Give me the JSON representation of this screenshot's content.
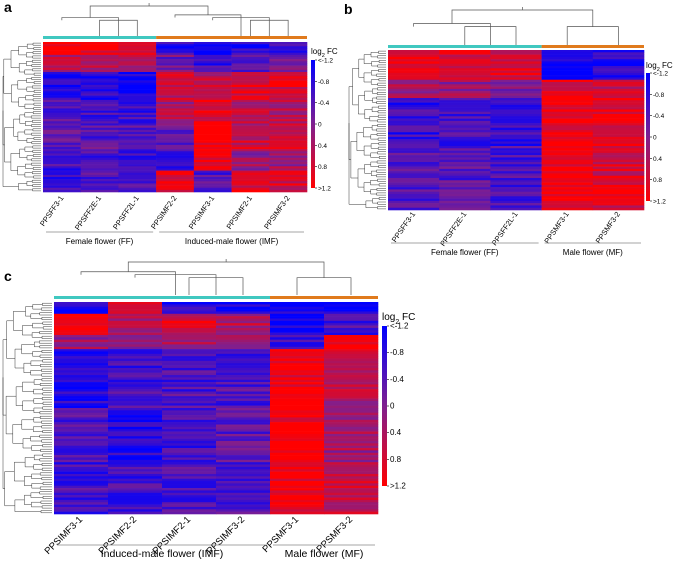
{
  "chart_data": [
    {
      "panel": "a",
      "type": "heatmap",
      "columns": [
        "PPSFF3-1",
        "PPSFF2E-1",
        "PPSFF2L-1",
        "PPSIMF2-2",
        "PPSIMF3-1",
        "PPSIMF2-1",
        "PPSIMF3-2"
      ],
      "groups": [
        {
          "label": "Female flower (FF)",
          "columns": [
            "PPSFF3-1",
            "PPSFF2E-1",
            "PPSFF2L-1"
          ],
          "color": "#40c8c0"
        },
        {
          "label": "Induced-male flower (IMF)",
          "columns": [
            "PPSIMF2-2",
            "PPSIMF3-1",
            "PPSIMF2-1",
            "PPSIMF3-2"
          ],
          "color": "#e07a1c"
        }
      ],
      "legend": {
        "title": "log",
        "title_sub": "2",
        "title_suffix": " FC",
        "ticks": [
          "<-1.2",
          "-0.8",
          "-0.4",
          "0",
          "0.4",
          "0.8",
          ">1.2"
        ],
        "range": [
          -1.2,
          1.2
        ]
      },
      "column_patterns": [
        [
          [
            0.09,
            1.1
          ],
          [
            0.2,
            0.5
          ],
          [
            0.38,
            -0.9
          ],
          [
            0.55,
            -0.5
          ],
          [
            0.72,
            -0.3
          ],
          [
            1.0,
            -0.6
          ]
        ],
        [
          [
            0.09,
            1.1
          ],
          [
            0.2,
            0.4
          ],
          [
            0.38,
            -0.9
          ],
          [
            0.55,
            -0.6
          ],
          [
            0.72,
            -0.4
          ],
          [
            1.0,
            -0.5
          ]
        ],
        [
          [
            0.09,
            1.0
          ],
          [
            0.2,
            0.3
          ],
          [
            0.38,
            -1.0
          ],
          [
            0.55,
            -0.7
          ],
          [
            0.72,
            -0.5
          ],
          [
            1.0,
            -0.6
          ]
        ],
        [
          [
            0.09,
            -0.8
          ],
          [
            0.2,
            -0.2
          ],
          [
            0.38,
            0.6
          ],
          [
            0.55,
            0.4
          ],
          [
            0.72,
            -0.4
          ],
          [
            0.85,
            -0.6
          ],
          [
            1.0,
            1.0
          ]
        ],
        [
          [
            0.09,
            -1.1
          ],
          [
            0.2,
            -0.7
          ],
          [
            0.38,
            0.5
          ],
          [
            0.55,
            1.0
          ],
          [
            0.72,
            1.1
          ],
          [
            0.85,
            1.1
          ],
          [
            1.0,
            -0.5
          ]
        ],
        [
          [
            0.09,
            -0.8
          ],
          [
            0.2,
            -0.3
          ],
          [
            0.38,
            0.9
          ],
          [
            0.55,
            0.6
          ],
          [
            0.72,
            0.7
          ],
          [
            0.85,
            0.2
          ],
          [
            1.0,
            0.9
          ]
        ],
        [
          [
            0.09,
            -0.7
          ],
          [
            0.2,
            -0.2
          ],
          [
            0.38,
            0.8
          ],
          [
            0.55,
            0.5
          ],
          [
            0.72,
            0.7
          ],
          [
            0.85,
            0.3
          ],
          [
            1.0,
            0.8
          ]
        ]
      ]
    },
    {
      "panel": "b",
      "type": "heatmap",
      "columns": [
        "PPSFF3-1",
        "PPSFF2E-1",
        "PPSFF2L-1",
        "PPSMF3-1",
        "PPSMF3-2"
      ],
      "groups": [
        {
          "label": "Female flower (FF)",
          "columns": [
            "PPSFF3-1",
            "PPSFF2E-1",
            "PPSFF2L-1"
          ],
          "color": "#40c8c0"
        },
        {
          "label": "Male flower (MF)",
          "columns": [
            "PPSMF3-1",
            "PPSMF3-2"
          ],
          "color": "#e07a1c"
        }
      ],
      "legend": {
        "title": "log",
        "title_sub": "2",
        "title_suffix": " FC",
        "ticks": [
          "<-1.2",
          "-0.8",
          "-0.4",
          "0",
          "0.4",
          "0.8",
          ">1.2"
        ],
        "range": [
          -1.2,
          1.2
        ]
      },
      "column_patterns": [
        [
          [
            0.18,
            1.0
          ],
          [
            0.3,
            0.3
          ],
          [
            0.6,
            -0.7
          ],
          [
            1.0,
            -0.5
          ]
        ],
        [
          [
            0.18,
            0.9
          ],
          [
            0.3,
            0.2
          ],
          [
            0.6,
            -0.6
          ],
          [
            1.0,
            -0.4
          ]
        ],
        [
          [
            0.18,
            0.9
          ],
          [
            0.3,
            0.1
          ],
          [
            0.6,
            -0.7
          ],
          [
            1.0,
            -0.5
          ]
        ],
        [
          [
            0.18,
            -1.1
          ],
          [
            0.3,
            1.0
          ],
          [
            0.6,
            1.1
          ],
          [
            1.0,
            1.1
          ]
        ],
        [
          [
            0.18,
            -0.9
          ],
          [
            0.3,
            0.7
          ],
          [
            0.6,
            1.0
          ],
          [
            1.0,
            0.8
          ]
        ]
      ]
    },
    {
      "panel": "c",
      "type": "heatmap",
      "columns": [
        "PPSIMF3-1",
        "PPSIMF2-2",
        "PPSIMF2-1",
        "PPSIMF3-2",
        "PPSMF3-1",
        "PPSMF3-2"
      ],
      "groups": [
        {
          "label": "Induced-male flower (IMF)",
          "columns": [
            "PPSIMF3-1",
            "PPSIMF2-2",
            "PPSIMF2-1",
            "PPSIMF3-2"
          ],
          "color": "#40c8c0"
        },
        {
          "label": "Male flower (MF)",
          "columns": [
            "PPSMF3-1",
            "PPSMF3-2"
          ],
          "color": "#e07a1c"
        }
      ],
      "legend": {
        "title": "log",
        "title_sub": "2",
        "title_suffix": " FC",
        "ticks": [
          "<-1.2",
          "-0.8",
          "-0.4",
          "0",
          "0.4",
          "0.8",
          ">1.2"
        ],
        "range": [
          -1.2,
          1.2
        ]
      },
      "column_patterns": [
        [
          [
            0.06,
            -1.0
          ],
          [
            0.16,
            1.0
          ],
          [
            0.22,
            0.2
          ],
          [
            0.5,
            -0.9
          ],
          [
            0.75,
            -0.5
          ],
          [
            1.0,
            -0.6
          ]
        ],
        [
          [
            0.06,
            1.0
          ],
          [
            0.16,
            0.3
          ],
          [
            0.22,
            0.0
          ],
          [
            0.5,
            -0.6
          ],
          [
            0.75,
            -0.9
          ],
          [
            1.0,
            -0.6
          ]
        ],
        [
          [
            0.06,
            -0.9
          ],
          [
            0.16,
            0.8
          ],
          [
            0.22,
            0.3
          ],
          [
            0.5,
            -0.5
          ],
          [
            0.75,
            -0.6
          ],
          [
            1.0,
            -0.5
          ]
        ],
        [
          [
            0.06,
            -0.9
          ],
          [
            0.16,
            0.5
          ],
          [
            0.22,
            0.1
          ],
          [
            0.5,
            -0.5
          ],
          [
            0.75,
            -0.4
          ],
          [
            1.0,
            -0.5
          ]
        ],
        [
          [
            0.06,
            -1.1
          ],
          [
            0.16,
            -1.1
          ],
          [
            0.22,
            -0.6
          ],
          [
            0.5,
            1.1
          ],
          [
            0.75,
            1.1
          ],
          [
            1.0,
            1.1
          ]
        ],
        [
          [
            0.06,
            -1.0
          ],
          [
            0.16,
            -0.6
          ],
          [
            0.22,
            1.0
          ],
          [
            0.5,
            0.5
          ],
          [
            0.75,
            0.3
          ],
          [
            1.0,
            0.6
          ]
        ]
      ]
    }
  ]
}
